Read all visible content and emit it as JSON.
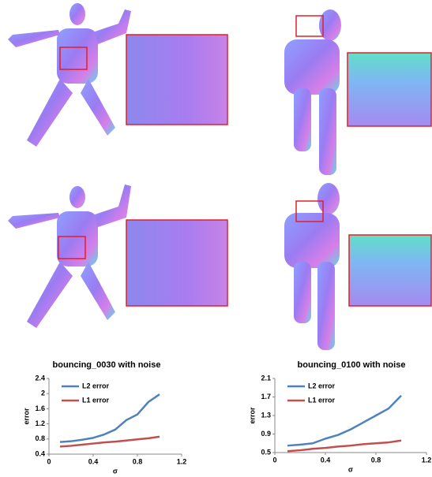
{
  "chart_data": [
    {
      "type": "line",
      "title": "bouncing_0030  with noise",
      "xlabel": "σ",
      "ylabel": "error",
      "x": [
        0.1,
        0.2,
        0.3,
        0.4,
        0.5,
        0.6,
        0.7,
        0.8,
        0.9,
        1.0
      ],
      "series": [
        {
          "name": "L2 error",
          "color": "#4f81bd",
          "values": [
            0.72,
            0.74,
            0.78,
            0.83,
            0.92,
            1.05,
            1.3,
            1.45,
            1.78,
            1.98
          ]
        },
        {
          "name": "L1 error",
          "color": "#c0504d",
          "values": [
            0.6,
            0.62,
            0.65,
            0.68,
            0.71,
            0.73,
            0.76,
            0.79,
            0.82,
            0.86
          ]
        }
      ],
      "xlim": [
        0,
        1.2
      ],
      "xticks": [
        0,
        0.4,
        0.8,
        1.2
      ],
      "ylim": [
        0.4,
        2.4
      ],
      "yticks": [
        0.4,
        0.8,
        1.2,
        1.6,
        2,
        2.4
      ],
      "grid": false,
      "legend": "upper left"
    },
    {
      "type": "line",
      "title": "bouncing_0100  with noise",
      "xlabel": "σ",
      "ylabel": "error",
      "x": [
        0.1,
        0.2,
        0.3,
        0.4,
        0.5,
        0.6,
        0.7,
        0.8,
        0.9,
        1.0
      ],
      "series": [
        {
          "name": "L2 error",
          "color": "#4f81bd",
          "values": [
            0.65,
            0.67,
            0.7,
            0.8,
            0.88,
            1.0,
            1.15,
            1.3,
            1.45,
            1.73
          ]
        },
        {
          "name": "L1 error",
          "color": "#c0504d",
          "values": [
            0.53,
            0.55,
            0.58,
            0.6,
            0.63,
            0.65,
            0.68,
            0.7,
            0.72,
            0.76
          ]
        }
      ],
      "xlim": [
        0,
        1.2
      ],
      "xticks": [
        0,
        0.4,
        0.8,
        1.2
      ],
      "ylim": [
        0.5,
        2.1
      ],
      "yticks": [
        0.5,
        0.9,
        1.3,
        1.7,
        2.1
      ],
      "grid": false,
      "legend": "upper left"
    }
  ]
}
